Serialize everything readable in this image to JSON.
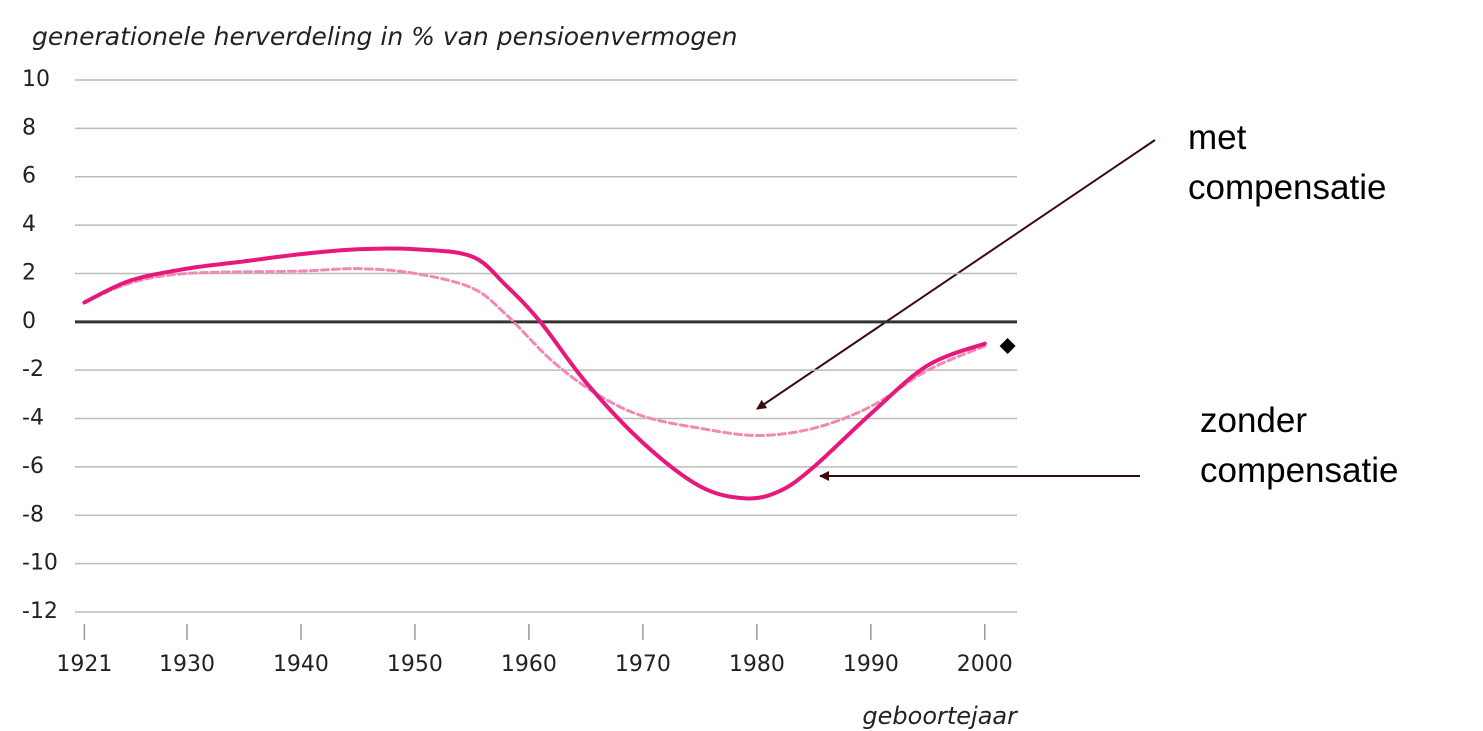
{
  "chart_data": {
    "type": "line",
    "title": "generationele herverdeling in % van pensioenvermogen",
    "x_label": "geboortejaar",
    "xlim": [
      1920,
      2003
    ],
    "xticks": [
      1921,
      1930,
      1940,
      1950,
      1960,
      1970,
      1980,
      1990,
      2000
    ],
    "ylim": [
      -12,
      10
    ],
    "yticks": [
      -12,
      -10,
      -8,
      -6,
      -4,
      -2,
      0,
      2,
      4,
      6,
      8,
      10
    ],
    "grid": true,
    "series": [
      {
        "name": "met compensatie",
        "color": "#f08ab5",
        "dashed": true,
        "x": [
          1921,
          1925,
          1930,
          1940,
          1945,
          1950,
          1955,
          1958,
          1962,
          1966,
          1970,
          1975,
          1980,
          1985,
          1990,
          1995,
          2000
        ],
        "values": [
          0.8,
          1.6,
          2.0,
          2.1,
          2.2,
          2.0,
          1.4,
          0.3,
          -1.6,
          -3.0,
          -3.9,
          -4.4,
          -4.7,
          -4.4,
          -3.5,
          -2.0,
          -1.0
        ]
      },
      {
        "name": "zonder compensatie",
        "color": "#e6197a",
        "dashed": false,
        "x": [
          1921,
          1925,
          1930,
          1935,
          1940,
          1945,
          1950,
          1955,
          1958,
          1961,
          1965,
          1970,
          1975,
          1979,
          1982,
          1985,
          1990,
          1995,
          2000
        ],
        "values": [
          0.8,
          1.7,
          2.2,
          2.5,
          2.8,
          3.0,
          3.0,
          2.7,
          1.5,
          0.0,
          -2.5,
          -5.0,
          -6.8,
          -7.3,
          -7.0,
          -6.0,
          -3.8,
          -1.8,
          -0.9
        ]
      }
    ],
    "point": {
      "x": 2002,
      "y": -1,
      "color": "#000000"
    }
  }
}
